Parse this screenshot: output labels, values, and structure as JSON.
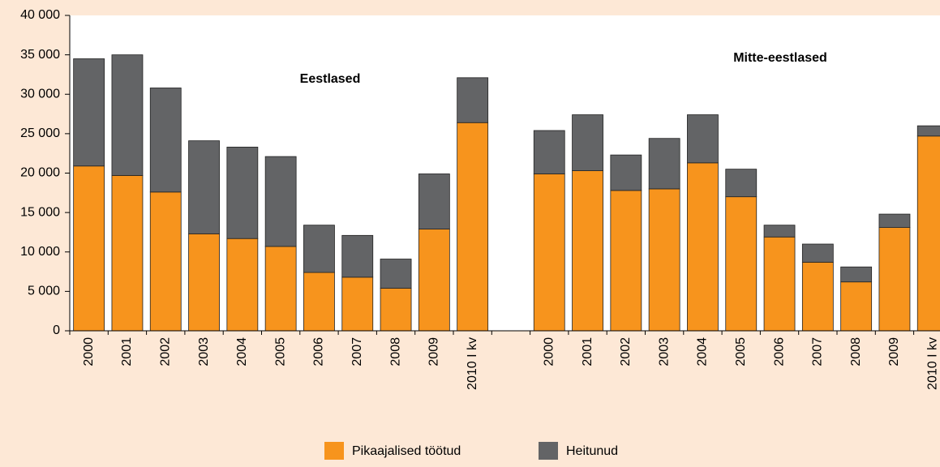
{
  "chart_data": {
    "type": "stacked-bar",
    "annotations": [
      "Eestlased",
      "Mitte-eestlased"
    ],
    "categories": [
      "2000",
      "2001",
      "2002",
      "2003",
      "2004",
      "2005",
      "2006",
      "2007",
      "2008",
      "2009",
      "2010 I kv",
      null,
      "2000",
      "2001",
      "2002",
      "2003",
      "2004",
      "2005",
      "2006",
      "2007",
      "2008",
      "2009",
      "2010 I kv"
    ],
    "series": [
      {
        "name": "Pikaajalised töötud",
        "color": "#f7941d",
        "values": [
          20900,
          19700,
          17600,
          12300,
          11700,
          10700,
          7400,
          6800,
          5400,
          12900,
          26400,
          null,
          19900,
          20300,
          17800,
          18000,
          21300,
          17000,
          11900,
          8700,
          6200,
          13100,
          24700
        ]
      },
      {
        "name": "Heitunud",
        "color": "#636466",
        "values": [
          13600,
          15300,
          13200,
          11800,
          11600,
          11400,
          6000,
          5300,
          3700,
          7000,
          5700,
          null,
          5500,
          7100,
          4500,
          6400,
          6100,
          3500,
          1500,
          2300,
          1900,
          1700,
          1300
        ]
      }
    ],
    "ylim": [
      0,
      40000
    ],
    "yticks": [
      0,
      {
        "value": 5000,
        "label": "5 000"
      },
      {
        "value": 10000,
        "label": "10 000"
      },
      {
        "value": 15000,
        "label": "15 000"
      },
      {
        "value": 20000,
        "label": "20 000"
      },
      {
        "value": 25000,
        "label": "25 000"
      },
      {
        "value": 30000,
        "label": "30 000"
      },
      {
        "value": 35000,
        "label": "35 000"
      },
      {
        "value": 40000,
        "label": "40 000"
      }
    ],
    "legend": "bottom"
  }
}
